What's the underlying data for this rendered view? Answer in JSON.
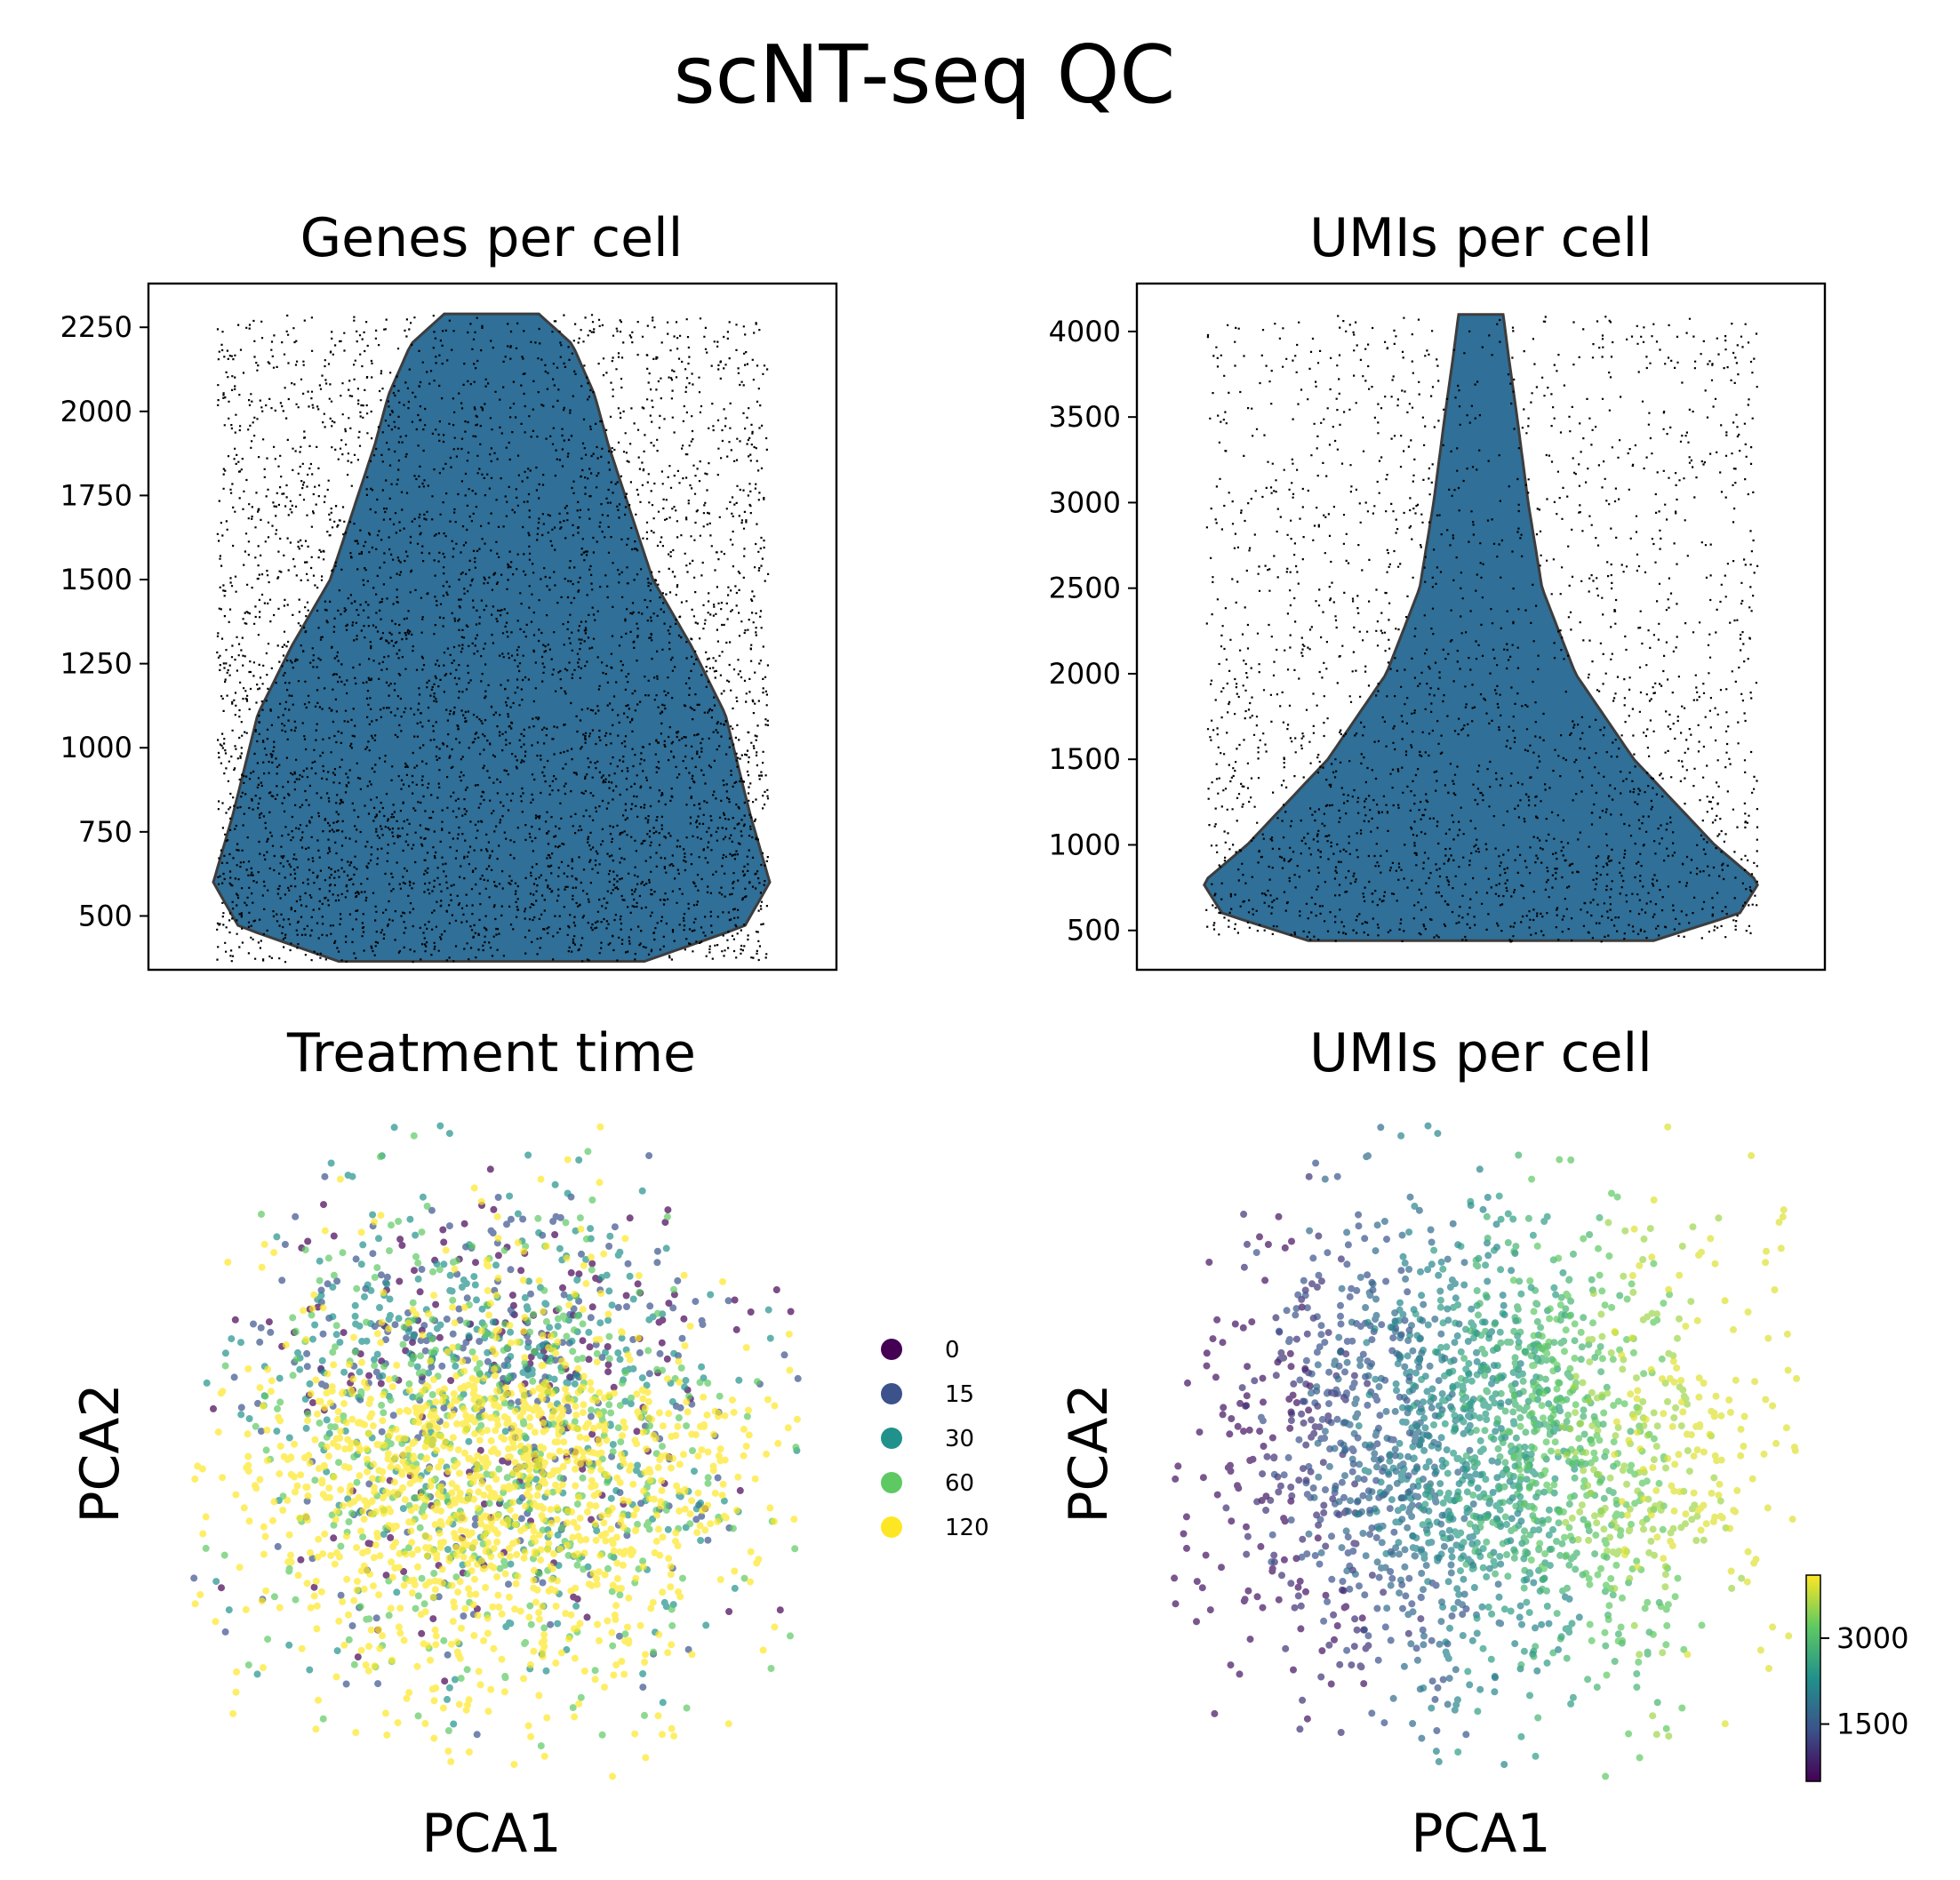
{
  "figure": {
    "title": "scNT-seq QC"
  },
  "chart_data": [
    {
      "type": "violin",
      "title": "Genes per cell",
      "xlabel": "",
      "ylabel": "",
      "ylim": [
        340,
        2380
      ],
      "yticks": [
        500,
        750,
        1000,
        1250,
        1500,
        1750,
        2000,
        2250
      ],
      "data_range": [
        365,
        2290
      ],
      "fill": "#2f6f98",
      "density_profile": [
        [
          365,
          0.55
        ],
        [
          470,
          0.91
        ],
        [
          600,
          1.0
        ],
        [
          800,
          0.93
        ],
        [
          1100,
          0.84
        ],
        [
          1300,
          0.72
        ],
        [
          1500,
          0.58
        ],
        [
          1750,
          0.48
        ],
        [
          1900,
          0.42
        ],
        [
          2050,
          0.37
        ],
        [
          2200,
          0.29
        ],
        [
          2290,
          0.17
        ]
      ],
      "n_cells_shown": 9000
    },
    {
      "type": "violin",
      "title": "UMIs per cell",
      "xlabel": "",
      "ylabel": "",
      "ylim": [
        270,
        4280
      ],
      "yticks": [
        500,
        1000,
        1500,
        2000,
        2500,
        3000,
        3500,
        4000
      ],
      "data_range": [
        440,
        4100
      ],
      "fill": "#2f6f98",
      "density_profile": [
        [
          440,
          0.62
        ],
        [
          600,
          0.93
        ],
        [
          780,
          1.0
        ],
        [
          1000,
          0.84
        ],
        [
          1500,
          0.55
        ],
        [
          2000,
          0.34
        ],
        [
          2500,
          0.22
        ],
        [
          3000,
          0.17
        ],
        [
          3500,
          0.13
        ],
        [
          3850,
          0.1
        ],
        [
          4100,
          0.08
        ]
      ],
      "n_cells_shown": 9000
    },
    {
      "type": "scatter",
      "title": "Treatment time",
      "xlabel": "PCA1",
      "ylabel": "PCA2",
      "color_by": "categorical",
      "legend": {
        "placement": "right",
        "entries": [
          {
            "label": "0",
            "color": "#440154"
          },
          {
            "label": "15",
            "color": "#3b528b"
          },
          {
            "label": "30",
            "color": "#21918c"
          },
          {
            "label": "60",
            "color": "#5ec962"
          },
          {
            "label": "120",
            "color": "#fde725"
          }
        ]
      },
      "axes_visible": false
    },
    {
      "type": "scatter",
      "title": "UMIs per cell",
      "xlabel": "PCA1",
      "ylabel": "PCA2",
      "color_by": "continuous",
      "colormap": "viridis",
      "colorbar": {
        "range": [
          500,
          4100
        ],
        "ticks": [
          1500,
          3000
        ]
      },
      "axes_visible": false
    }
  ]
}
